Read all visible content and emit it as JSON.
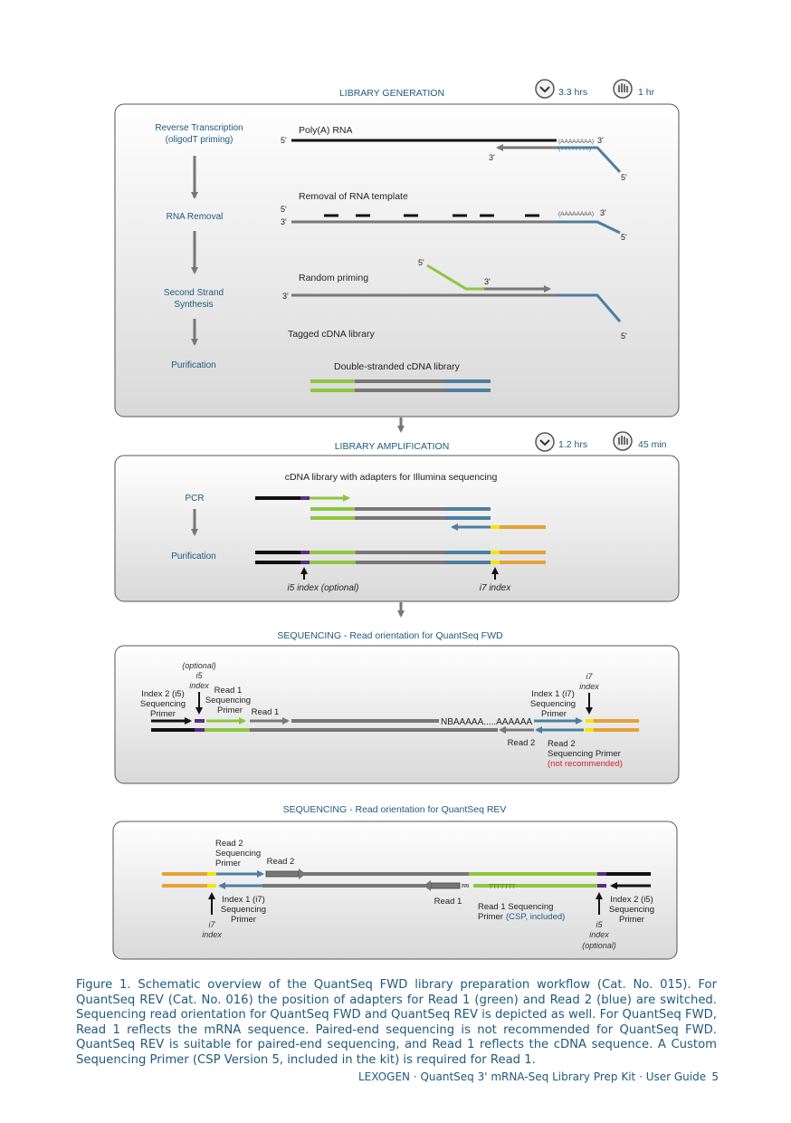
{
  "sections": {
    "library_generation": {
      "title": "LIBRARY GENERATION",
      "time_total": "3.3 hrs",
      "time_hands_on": "1 hr",
      "steps": [
        "Reverse Transcription",
        "(oligodT priming)",
        "RNA Removal",
        "Second Strand",
        "Synthesis",
        "Purification"
      ],
      "labels": {
        "polya_rna": "Poly(A) RNA",
        "removal": "Removal of RNA template",
        "random_priming": "Random priming",
        "tagged": "Tagged cDNA library",
        "ds_library": "Double-stranded cDNA library",
        "polya_tail": "(AAAAAAAA)",
        "polyt_tail": "(TTTTTTTT)",
        "five_prime": "5'",
        "three_prime": "3'"
      }
    },
    "library_amplification": {
      "title": "LIBRARY AMPLIFICATION",
      "time_total": "1.2 hrs",
      "time_hands_on": "45 min",
      "subtitle": "cDNA library with adapters for Illumina sequencing",
      "steps": [
        "PCR",
        "Purification"
      ],
      "i5_label": "i5 index (optional)",
      "i7_label": "i7 index"
    },
    "sequencing_fwd": {
      "title": "SEQUENCING - Read orientation for QuantSeq FWD",
      "optional": "(optional)",
      "i5": "i5",
      "index_word": "index",
      "index2_primer": [
        "Index 2 (i5)",
        "Sequencing",
        "Primer"
      ],
      "read1_primer": [
        "Read 1",
        "Sequencing",
        "Primer"
      ],
      "read1": "Read 1",
      "nba": "NBAAAAA.....AAAAAA",
      "i7": "i7",
      "index1_primer": [
        "Index 1 (i7)",
        "Sequencing",
        "Primer"
      ],
      "read2": "Read 2",
      "read2_primer": [
        "Read 2",
        "Sequencing Primer"
      ],
      "not_recommended": "(not recommended)"
    },
    "sequencing_rev": {
      "title": "SEQUENCING - Read orientation for QuantSeq REV",
      "read2_primer": [
        "Read 2",
        "Sequencing",
        "Primer"
      ],
      "read2": "Read 2",
      "nv": "NV",
      "polyt": "TTTTTTT",
      "read1": "Read 1",
      "read1_primer_a": "Read 1 Sequencing",
      "read1_primer_b": "Primer",
      "csp": "(CSP, included)",
      "index1_primer": [
        "Index 1 (i7)",
        "Sequencing",
        "Primer"
      ],
      "index2_primer": [
        "Index 2 (i5)",
        "Sequencing",
        "Primer"
      ],
      "i7": "i7",
      "i5": "i5",
      "index_word": "index",
      "optional": "(optional)"
    }
  },
  "caption": "Figure 1. Schematic overview of the QuantSeq FWD library preparation workflow (Cat. No. 015). For QuantSeq REV (Cat. No. 016) the position of adapters for Read 1 (green) and Read 2 (blue) are switched. Sequencing read orientation for QuantSeq FWD and QuantSeq REV is depicted as well. For QuantSeq FWD, Read 1 reflects the mRNA sequence. Paired-end sequencing is not recommended for QuantSeq FWD. QuantSeq REV is suitable for paired-end sequencing, and Read 1 reflects the cDNA sequence. A Custom Sequencing Primer (CSP Version 5, included in the kit) is required for Read 1.",
  "footer": {
    "text": "LEXOGEN · QuantSeq 3' mRNA-Seq Library Prep Kit · User Guide",
    "page_number": "5"
  },
  "colors": {
    "blue_text": "#1f5a7e",
    "green": "#8dc63f",
    "blue": "#4d7fa0",
    "gray": "#767676",
    "orange": "#e5a238",
    "yellow": "#f3e600",
    "purple": "#5b2c83",
    "red": "#d0262b"
  },
  "icons": [
    "clock-icon",
    "hand-icon"
  ]
}
